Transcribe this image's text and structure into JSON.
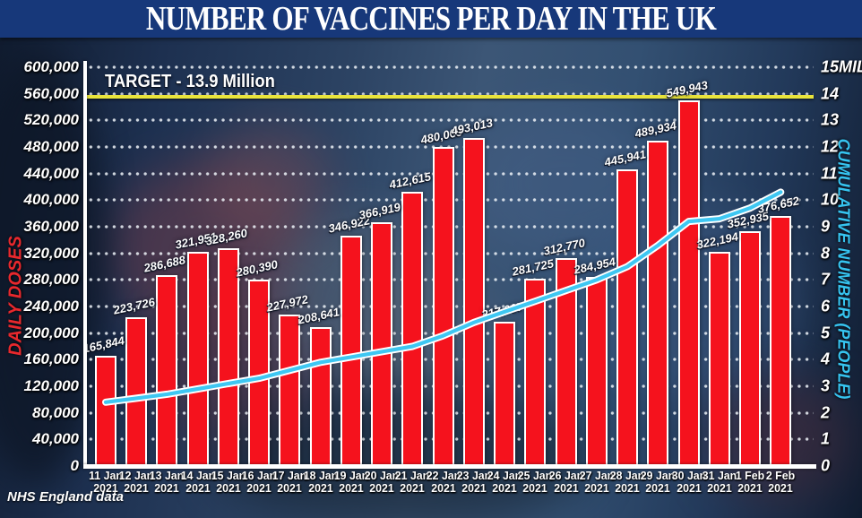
{
  "title": "NUMBER OF VACCINES PER DAY IN THE UK",
  "source_credit": "NHS England data",
  "left_axis": {
    "title": "DAILY DOSES",
    "ticks": [
      "600,000",
      "560,000",
      "520,000",
      "480,000",
      "440,000",
      "400,000",
      "360,000",
      "320,000",
      "280,000",
      "240,000",
      "200,000",
      "160,000",
      "120,000",
      "80,000",
      "40,000",
      "0"
    ]
  },
  "right_axis": {
    "title": "CUMULATIVE NUMBER (PEOPLE)",
    "ticks": [
      "15MIL",
      "14",
      "13",
      "12",
      "11",
      "10",
      "9",
      "8",
      "7",
      "6",
      "5",
      "4",
      "3",
      "2",
      "1",
      "0"
    ]
  },
  "target": {
    "label": "TARGET - 13.9 Million",
    "value_mil": 13.9
  },
  "chart_data": {
    "type": "bar",
    "title": "Number of vaccines per day in the UK",
    "categories": [
      "11 Jan",
      "12 Jan",
      "13 Jan",
      "14 Jan",
      "15 Jan",
      "16 Jan",
      "17 Jan",
      "18 Jan",
      "19 Jan",
      "20 Jan",
      "21 Jan",
      "22 Jan",
      "23 Jan",
      "24 Jan",
      "25 Jan",
      "26 Jan",
      "27 Jan",
      "28 Jan",
      "29 Jan",
      "30 Jan",
      "31 Jan",
      "1 Feb",
      "2 Feb"
    ],
    "year_label": "2021",
    "series": [
      {
        "name": "Daily doses",
        "type": "bar",
        "axis": "left",
        "values": [
          165844,
          223726,
          286688,
          321951,
          328260,
          280390,
          227972,
          208641,
          346922,
          366919,
          412615,
          480069,
          493013,
          217007,
          281725,
          312770,
          284954,
          445941,
          489934,
          549943,
          322194,
          352935,
          376652
        ],
        "labels": [
          "165,844",
          "223,726",
          "286,688",
          "321,951",
          "328,260",
          "280,390",
          "227,972",
          "208,641",
          "346,922",
          "366,919",
          "412,615",
          "480,069",
          "493,013",
          "217,007",
          "281,725",
          "312,770",
          "284,954",
          "445,941",
          "489,934",
          "549,943",
          "322,194",
          "352,935",
          "376,652"
        ]
      },
      {
        "name": "Cumulative number (people), millions",
        "type": "line",
        "axis": "right",
        "values_mil": [
          2.4,
          2.55,
          2.7,
          2.9,
          3.1,
          3.3,
          3.6,
          3.9,
          4.1,
          4.3,
          4.5,
          4.9,
          5.4,
          5.8,
          6.2,
          6.6,
          7.0,
          7.5,
          8.3,
          9.2,
          9.3,
          9.7,
          10.3
        ]
      }
    ],
    "left_ylim": [
      0,
      600000
    ],
    "right_ylim_mil": [
      0,
      15
    ],
    "grid": "dotted horizontal gridlines every 40,000 doses / 1 MIL people",
    "legend_position": "none",
    "target_line_mil": 13.9
  },
  "colors": {
    "title_bg": "#17387a",
    "bar_red": "#f5121d",
    "line_cyan": "#3ec7f2",
    "line_casing": "#ffffff",
    "target_yellow": "#e9e43b",
    "left_axis_title": "#e8282d",
    "right_axis_title": "#36c4f0",
    "tick_text": "#ffffff"
  }
}
